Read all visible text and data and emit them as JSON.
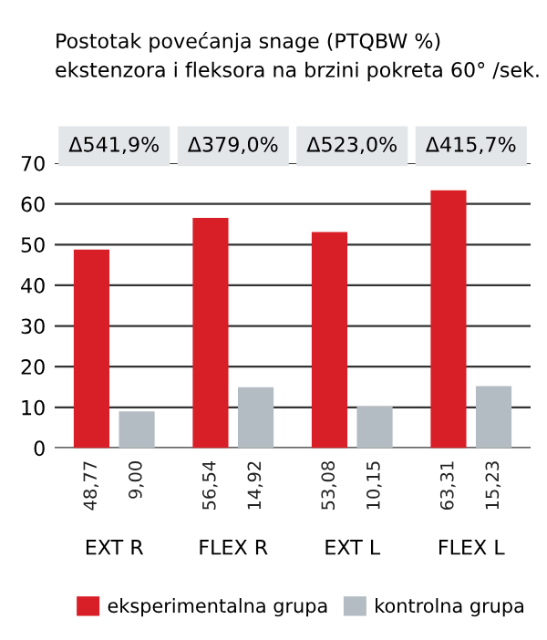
{
  "chart_data": {
    "type": "bar",
    "title": "Postotak povećanja snage (PTQBW %)\nekstenzora i fleksora na brzini pokreta 60° /sek.",
    "categories": [
      "EXT R",
      "FLEX R",
      "EXT L",
      "FLEX L"
    ],
    "series": [
      {
        "name": "eksperimentalna grupa",
        "color": "#d81e26",
        "values": [
          48.77,
          56.54,
          53.08,
          63.31
        ],
        "value_labels": [
          "48,77",
          "56,54",
          "53,08",
          "63,31"
        ]
      },
      {
        "name": "kontrolna grupa",
        "color": "#b3bcc2",
        "values": [
          9.0,
          14.92,
          10.15,
          15.23
        ],
        "value_labels": [
          "9,00",
          "14,92",
          "10,15",
          "15,23"
        ]
      }
    ],
    "annotations": [
      "Δ541,9%",
      "Δ379,0%",
      "Δ523,0%",
      "Δ415,7%"
    ],
    "ylim": [
      0,
      70
    ],
    "yticks": [
      0,
      10,
      20,
      30,
      40,
      50,
      60,
      70
    ],
    "grid": "y",
    "legend": "bottom"
  }
}
